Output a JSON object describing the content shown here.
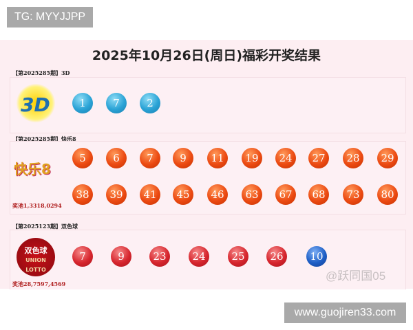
{
  "watermark_top": "TG: MYYJJPP",
  "title": "2025年10月26日(周日)福彩开奖结果",
  "sections": [
    {
      "label": "【第2025285期】3D",
      "logo": "3D",
      "balls": [
        "1",
        "7",
        "2"
      ],
      "color": "#2aa3d6"
    },
    {
      "label": "【第2025285期】快乐8",
      "logo": "快乐8",
      "balls": [
        "5",
        "6",
        "7",
        "9",
        "11",
        "19",
        "24",
        "27",
        "28",
        "29",
        "38",
        "39",
        "41",
        "45",
        "46",
        "63",
        "67",
        "68",
        "73",
        "80"
      ],
      "pool": "奖池1,3318,0294",
      "color": "#ec4a12"
    },
    {
      "label": "【第2025123期】双色球",
      "logo": "双色球 UNION LOTTO",
      "red_balls": [
        "7",
        "9",
        "23",
        "24",
        "25",
        "26"
      ],
      "blue_ball": "10",
      "pool": "奖池28,7597,4569",
      "red_color": "#d7262e",
      "blue_color": "#1e5fc6"
    }
  ],
  "watermark_author": "@跃同国05",
  "watermark_url": "www.guojiren33.com"
}
